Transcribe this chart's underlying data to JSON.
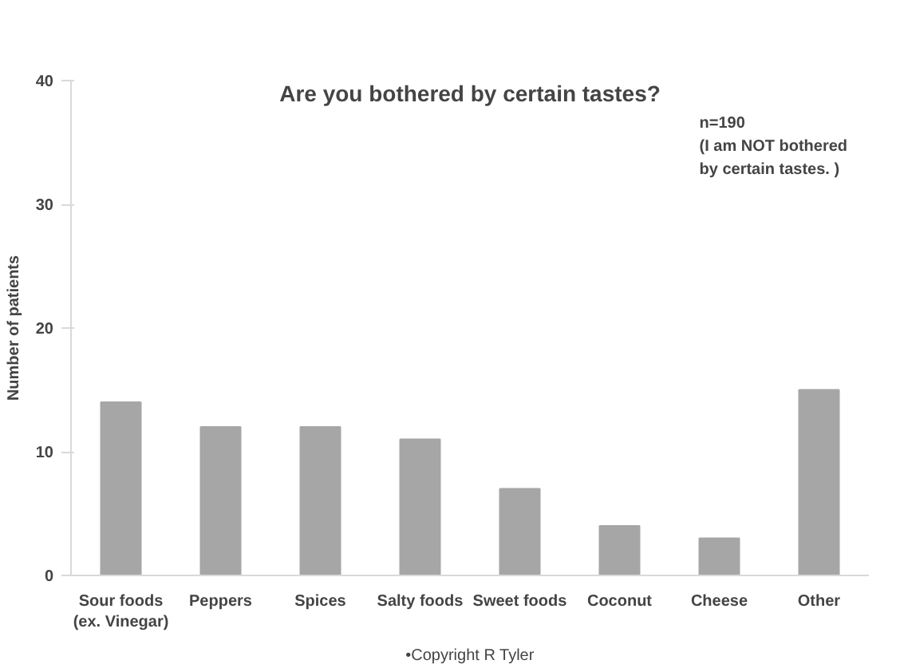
{
  "chart_data": {
    "type": "bar",
    "title": "Are you bothered by certain tastes?",
    "ylabel": "Number of patients",
    "categories": [
      "Sour foods\n(ex. Vinegar)",
      "Peppers",
      "Spices",
      "Salty foods",
      "Sweet foods",
      "Coconut",
      "Cheese",
      "Other"
    ],
    "values": [
      14,
      12,
      12,
      11,
      7,
      4,
      3,
      15
    ],
    "color": "#a6a6a6",
    "ylim": [
      0,
      40
    ],
    "yticks": [
      0,
      10,
      20,
      30,
      40
    ],
    "grid": false,
    "annotations": [
      "n=190\n(I am NOT bothered\nby certain tastes. )",
      "•Copyright R Tyler"
    ]
  }
}
